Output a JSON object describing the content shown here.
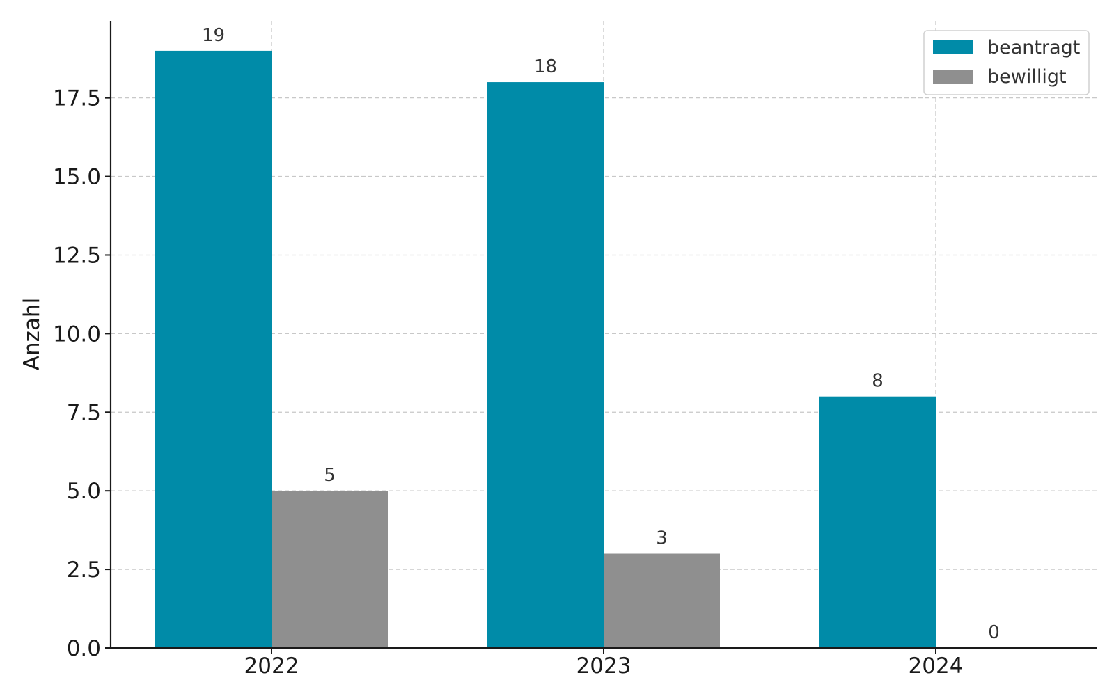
{
  "chart_data": {
    "type": "bar",
    "title": "",
    "xlabel": "",
    "ylabel": "Anzahl",
    "categories": [
      "2022",
      "2023",
      "2024"
    ],
    "series": [
      {
        "name": "beantragt",
        "values": [
          19,
          18,
          8
        ],
        "color": "#008ba8"
      },
      {
        "name": "bewilligt",
        "values": [
          5,
          3,
          0
        ],
        "color": "#8f8f8f"
      }
    ],
    "ylim": [
      0,
      19.95
    ],
    "yticks": [
      0.0,
      2.5,
      5.0,
      7.5,
      10.0,
      12.5,
      15.0,
      17.5
    ],
    "ytick_labels": [
      "0.0",
      "2.5",
      "5.0",
      "7.5",
      "10.0",
      "12.5",
      "15.0",
      "17.5"
    ],
    "grid": true,
    "legend_position": "top-right",
    "show_value_labels": true
  }
}
